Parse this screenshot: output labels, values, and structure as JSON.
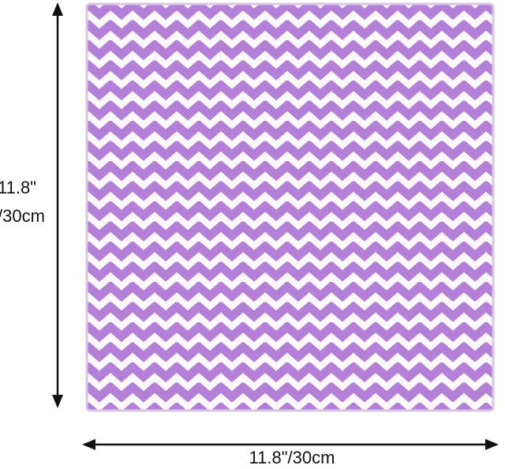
{
  "dimensions": {
    "height": {
      "line1": "11.8\"",
      "line2": "/30cm"
    },
    "width": "11.8\"/30cm"
  }
}
